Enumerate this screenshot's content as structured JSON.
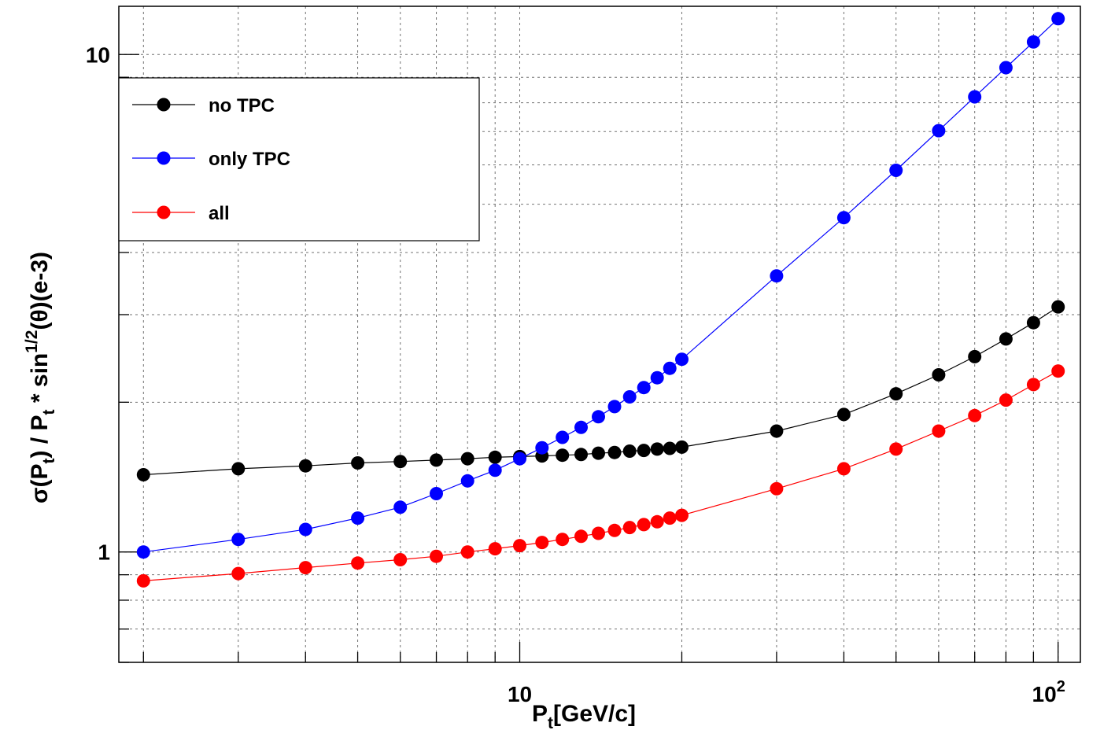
{
  "chart_data": {
    "type": "line",
    "xlabel_main": "P",
    "xlabel_sub": "t",
    "xlabel_tail": "[GeV/c]",
    "ylabel_parts": {
      "a": "σ(P",
      "a_sub": "t",
      "b": ") / P",
      "b_sub": "t",
      "c": " * sin",
      "c_sup": "1/2",
      "d": "(θ)(e-3)"
    },
    "x_scale": "log",
    "y_scale": "log",
    "xlim": [
      1.8,
      110
    ],
    "ylim": [
      0.6,
      12.5
    ],
    "x_tick_labels": [
      {
        "value": 10,
        "base": "10",
        "exp": ""
      },
      {
        "value": 100,
        "base": "10",
        "exp": "2"
      }
    ],
    "y_tick_labels": [
      {
        "value": 1,
        "label": "1"
      },
      {
        "value": 10,
        "label": "10"
      }
    ],
    "grid": true,
    "legend_position": "top-left",
    "series": [
      {
        "name": "no TPC",
        "color": "#000000",
        "x": [
          2,
          3,
          4,
          5,
          6,
          7,
          8,
          9,
          10,
          11,
          12,
          13,
          14,
          15,
          16,
          17,
          18,
          19,
          20,
          30,
          40,
          50,
          60,
          70,
          80,
          90,
          100
        ],
        "y": [
          1.43,
          1.47,
          1.49,
          1.51,
          1.52,
          1.53,
          1.54,
          1.55,
          1.555,
          1.56,
          1.565,
          1.57,
          1.58,
          1.585,
          1.595,
          1.6,
          1.61,
          1.615,
          1.625,
          1.75,
          1.89,
          2.08,
          2.27,
          2.47,
          2.68,
          2.89,
          3.11
        ]
      },
      {
        "name": "only TPC",
        "color": "#0000ff",
        "x": [
          2,
          3,
          4,
          5,
          6,
          7,
          8,
          9,
          10,
          11,
          12,
          13,
          14,
          15,
          16,
          17,
          18,
          19,
          20,
          30,
          40,
          50,
          60,
          70,
          80,
          90,
          100
        ],
        "y": [
          1.0,
          1.06,
          1.11,
          1.17,
          1.23,
          1.31,
          1.39,
          1.46,
          1.54,
          1.62,
          1.7,
          1.78,
          1.87,
          1.96,
          2.05,
          2.14,
          2.24,
          2.34,
          2.44,
          3.59,
          4.7,
          5.85,
          7.03,
          8.22,
          9.41,
          10.6,
          11.8
        ]
      },
      {
        "name": "all",
        "color": "#ff0000",
        "x": [
          2,
          3,
          4,
          5,
          6,
          7,
          8,
          9,
          10,
          11,
          12,
          13,
          14,
          15,
          16,
          17,
          18,
          19,
          20,
          30,
          40,
          50,
          60,
          70,
          80,
          90,
          100
        ],
        "y": [
          0.875,
          0.905,
          0.93,
          0.95,
          0.965,
          0.98,
          1.0,
          1.015,
          1.03,
          1.045,
          1.06,
          1.075,
          1.09,
          1.105,
          1.12,
          1.135,
          1.15,
          1.17,
          1.185,
          1.34,
          1.47,
          1.61,
          1.75,
          1.88,
          2.02,
          2.17,
          2.31
        ]
      }
    ]
  }
}
